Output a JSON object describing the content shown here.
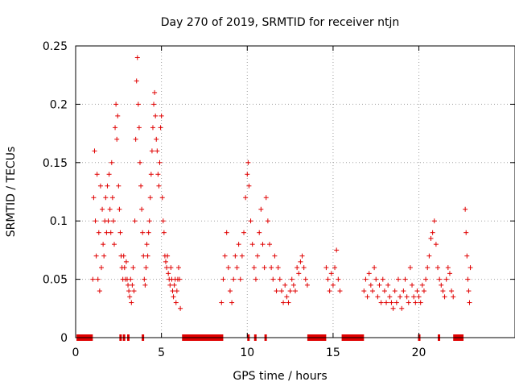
{
  "chart_data": {
    "type": "scatter",
    "title": "Day 270 of 2019, SRMTID for receiver ntjn",
    "xlabel": "GPS time / hours",
    "ylabel": "SRMTID / TECUs",
    "xlim": [
      0,
      25.6
    ],
    "ylim": [
      0,
      0.25
    ],
    "xticks": [
      0,
      5,
      10,
      15,
      20
    ],
    "xtick_labels": [
      "0",
      "5",
      "10",
      "15",
      "20"
    ],
    "yticks": [
      0,
      0.05,
      0.1,
      0.15,
      0.2,
      0.25
    ],
    "ytick_labels": [
      "0",
      "0.05",
      "0.1",
      "0.15",
      "0.2",
      "0.25"
    ],
    "grid": true,
    "marker": "+",
    "color": "#e00000",
    "series": [
      {
        "name": "SRMTID",
        "points": [
          [
            1.0,
            0.05
          ],
          [
            1.05,
            0.12
          ],
          [
            1.1,
            0.16
          ],
          [
            1.15,
            0.1
          ],
          [
            1.2,
            0.07
          ],
          [
            1.25,
            0.14
          ],
          [
            1.3,
            0.05
          ],
          [
            1.35,
            0.09
          ],
          [
            1.4,
            0.04
          ],
          [
            1.45,
            0.13
          ],
          [
            1.5,
            0.06
          ],
          [
            1.55,
            0.11
          ],
          [
            1.6,
            0.08
          ],
          [
            1.65,
            0.07
          ],
          [
            1.7,
            0.1
          ],
          [
            1.75,
            0.12
          ],
          [
            1.8,
            0.09
          ],
          [
            1.85,
            0.13
          ],
          [
            1.9,
            0.1
          ],
          [
            1.95,
            0.14
          ],
          [
            2.0,
            0.11
          ],
          [
            2.05,
            0.09
          ],
          [
            2.1,
            0.15
          ],
          [
            2.15,
            0.12
          ],
          [
            2.2,
            0.1
          ],
          [
            2.25,
            0.08
          ],
          [
            2.3,
            0.18
          ],
          [
            2.35,
            0.2
          ],
          [
            2.4,
            0.17
          ],
          [
            2.45,
            0.19
          ],
          [
            2.5,
            0.13
          ],
          [
            2.55,
            0.11
          ],
          [
            2.6,
            0.09
          ],
          [
            2.65,
            0.07
          ],
          [
            2.7,
            0.06
          ],
          [
            2.75,
            0.05
          ],
          [
            2.8,
            0.07
          ],
          [
            2.85,
            0.06
          ],
          [
            2.9,
            0.05
          ],
          [
            2.95,
            0.065
          ],
          [
            3.0,
            0.05
          ],
          [
            3.05,
            0.045
          ],
          [
            3.1,
            0.04
          ],
          [
            3.15,
            0.035
          ],
          [
            3.2,
            0.05
          ],
          [
            3.25,
            0.03
          ],
          [
            3.3,
            0.045
          ],
          [
            3.35,
            0.06
          ],
          [
            3.4,
            0.04
          ],
          [
            3.45,
            0.1
          ],
          [
            3.5,
            0.17
          ],
          [
            3.55,
            0.22
          ],
          [
            3.6,
            0.24
          ],
          [
            3.65,
            0.2
          ],
          [
            3.7,
            0.18
          ],
          [
            3.75,
            0.15
          ],
          [
            3.8,
            0.13
          ],
          [
            3.85,
            0.11
          ],
          [
            3.9,
            0.09
          ],
          [
            3.95,
            0.07
          ],
          [
            4.0,
            0.05
          ],
          [
            4.05,
            0.045
          ],
          [
            4.1,
            0.06
          ],
          [
            4.15,
            0.08
          ],
          [
            4.2,
            0.07
          ],
          [
            4.25,
            0.09
          ],
          [
            4.3,
            0.1
          ],
          [
            4.35,
            0.12
          ],
          [
            4.4,
            0.14
          ],
          [
            4.45,
            0.16
          ],
          [
            4.5,
            0.18
          ],
          [
            4.55,
            0.2
          ],
          [
            4.6,
            0.21
          ],
          [
            4.65,
            0.19
          ],
          [
            4.7,
            0.17
          ],
          [
            4.75,
            0.16
          ],
          [
            4.8,
            0.14
          ],
          [
            4.85,
            0.13
          ],
          [
            4.9,
            0.15
          ],
          [
            4.95,
            0.18
          ],
          [
            5.0,
            0.19
          ],
          [
            5.05,
            0.12
          ],
          [
            5.1,
            0.1
          ],
          [
            5.15,
            0.09
          ],
          [
            5.2,
            0.07
          ],
          [
            5.25,
            0.065
          ],
          [
            5.3,
            0.06
          ],
          [
            5.35,
            0.07
          ],
          [
            5.4,
            0.055
          ],
          [
            5.45,
            0.05
          ],
          [
            5.5,
            0.045
          ],
          [
            5.55,
            0.06
          ],
          [
            5.6,
            0.05
          ],
          [
            5.65,
            0.04
          ],
          [
            5.7,
            0.035
          ],
          [
            5.75,
            0.045
          ],
          [
            5.8,
            0.05
          ],
          [
            5.85,
            0.03
          ],
          [
            5.9,
            0.04
          ],
          [
            5.95,
            0.05
          ],
          [
            6.0,
            0.06
          ],
          [
            6.05,
            0.05
          ],
          [
            6.1,
            0.025
          ],
          [
            8.5,
            0.03
          ],
          [
            8.6,
            0.05
          ],
          [
            8.7,
            0.07
          ],
          [
            8.8,
            0.09
          ],
          [
            8.9,
            0.06
          ],
          [
            9.0,
            0.04
          ],
          [
            9.1,
            0.03
          ],
          [
            9.2,
            0.05
          ],
          [
            9.3,
            0.07
          ],
          [
            9.4,
            0.06
          ],
          [
            9.5,
            0.08
          ],
          [
            9.6,
            0.05
          ],
          [
            9.7,
            0.07
          ],
          [
            9.8,
            0.09
          ],
          [
            9.9,
            0.12
          ],
          [
            10.0,
            0.14
          ],
          [
            10.05,
            0.15
          ],
          [
            10.1,
            0.13
          ],
          [
            10.2,
            0.1
          ],
          [
            10.3,
            0.08
          ],
          [
            10.4,
            0.06
          ],
          [
            10.5,
            0.05
          ],
          [
            10.6,
            0.07
          ],
          [
            10.7,
            0.09
          ],
          [
            10.8,
            0.11
          ],
          [
            10.9,
            0.08
          ],
          [
            11.0,
            0.06
          ],
          [
            11.1,
            0.12
          ],
          [
            11.2,
            0.1
          ],
          [
            11.3,
            0.08
          ],
          [
            11.4,
            0.06
          ],
          [
            11.5,
            0.05
          ],
          [
            11.6,
            0.07
          ],
          [
            11.7,
            0.04
          ],
          [
            11.8,
            0.06
          ],
          [
            11.9,
            0.05
          ],
          [
            12.0,
            0.04
          ],
          [
            12.1,
            0.03
          ],
          [
            12.2,
            0.045
          ],
          [
            12.3,
            0.035
          ],
          [
            12.4,
            0.03
          ],
          [
            12.5,
            0.04
          ],
          [
            12.6,
            0.05
          ],
          [
            12.7,
            0.045
          ],
          [
            12.8,
            0.04
          ],
          [
            12.9,
            0.06
          ],
          [
            13.0,
            0.055
          ],
          [
            13.1,
            0.065
          ],
          [
            13.2,
            0.07
          ],
          [
            13.3,
            0.06
          ],
          [
            13.4,
            0.05
          ],
          [
            13.5,
            0.045
          ],
          [
            14.6,
            0.06
          ],
          [
            14.7,
            0.05
          ],
          [
            14.8,
            0.04
          ],
          [
            14.9,
            0.055
          ],
          [
            15.0,
            0.045
          ],
          [
            15.1,
            0.06
          ],
          [
            15.2,
            0.075
          ],
          [
            15.3,
            0.05
          ],
          [
            15.4,
            0.04
          ],
          [
            16.8,
            0.04
          ],
          [
            16.9,
            0.05
          ],
          [
            17.0,
            0.035
          ],
          [
            17.1,
            0.055
          ],
          [
            17.2,
            0.045
          ],
          [
            17.3,
            0.04
          ],
          [
            17.4,
            0.06
          ],
          [
            17.5,
            0.05
          ],
          [
            17.6,
            0.035
          ],
          [
            17.7,
            0.045
          ],
          [
            17.8,
            0.03
          ],
          [
            17.9,
            0.05
          ],
          [
            18.0,
            0.04
          ],
          [
            18.1,
            0.03
          ],
          [
            18.2,
            0.045
          ],
          [
            18.3,
            0.035
          ],
          [
            18.4,
            0.03
          ],
          [
            18.5,
            0.025
          ],
          [
            18.6,
            0.04
          ],
          [
            18.7,
            0.03
          ],
          [
            18.8,
            0.05
          ],
          [
            18.9,
            0.035
          ],
          [
            19.0,
            0.025
          ],
          [
            19.1,
            0.04
          ],
          [
            19.2,
            0.05
          ],
          [
            19.3,
            0.035
          ],
          [
            19.4,
            0.03
          ],
          [
            19.5,
            0.06
          ],
          [
            19.6,
            0.045
          ],
          [
            19.7,
            0.035
          ],
          [
            19.8,
            0.03
          ],
          [
            19.9,
            0.04
          ],
          [
            20.0,
            0.035
          ],
          [
            20.1,
            0.03
          ],
          [
            20.2,
            0.045
          ],
          [
            20.3,
            0.04
          ],
          [
            20.4,
            0.05
          ],
          [
            20.5,
            0.06
          ],
          [
            20.6,
            0.07
          ],
          [
            20.7,
            0.085
          ],
          [
            20.8,
            0.09
          ],
          [
            20.9,
            0.1
          ],
          [
            21.0,
            0.08
          ],
          [
            21.1,
            0.06
          ],
          [
            21.2,
            0.05
          ],
          [
            21.3,
            0.045
          ],
          [
            21.4,
            0.04
          ],
          [
            21.5,
            0.035
          ],
          [
            21.6,
            0.05
          ],
          [
            21.7,
            0.06
          ],
          [
            21.8,
            0.055
          ],
          [
            21.9,
            0.04
          ],
          [
            22.0,
            0.035
          ],
          [
            22.7,
            0.11
          ],
          [
            22.75,
            0.09
          ],
          [
            22.8,
            0.07
          ],
          [
            22.85,
            0.05
          ],
          [
            22.9,
            0.04
          ],
          [
            22.95,
            0.03
          ],
          [
            23.0,
            0.06
          ]
        ]
      }
    ],
    "gaps": [
      [
        0.05,
        1.0
      ],
      [
        2.55,
        2.6
      ],
      [
        2.75,
        2.85
      ],
      [
        3.0,
        3.05
      ],
      [
        3.85,
        3.95
      ],
      [
        6.2,
        8.6
      ],
      [
        10.0,
        10.1
      ],
      [
        10.4,
        10.5
      ],
      [
        11.0,
        11.05
      ],
      [
        13.5,
        14.6
      ],
      [
        15.5,
        16.8
      ],
      [
        19.95,
        20.05
      ],
      [
        21.1,
        21.15
      ],
      [
        22.0,
        22.6
      ]
    ]
  }
}
